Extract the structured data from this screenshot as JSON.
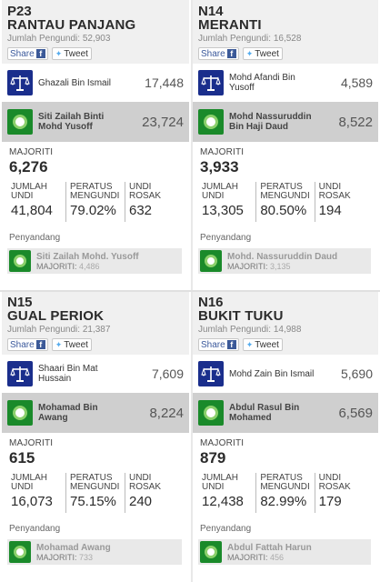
{
  "colors": {
    "bn": "#1a2e8c",
    "pas": "#1a8a2a",
    "winner_bg": "#cfcfcf"
  },
  "share": {
    "share_label": "Share",
    "fb_icon": "f",
    "tweet_label": "Tweet"
  },
  "labels": {
    "voters_prefix": "Jumlah Pengundi:",
    "majority": "MAJORITI",
    "jumlah1": "JUMLAH",
    "jumlah2": "UNDI",
    "peratus1": "PERATUS",
    "peratus2": "MENGUNDI",
    "rosak1": "UNDI",
    "rosak2": "ROSAK",
    "incumbent": "Penyandang",
    "inc_majority_prefix": "MAJORITI:"
  },
  "seats": [
    {
      "code": "P23",
      "name": "RANTAU PANJANG",
      "voters": "52,903",
      "candidates": [
        {
          "party": "bn",
          "name": "Ghazali Bin Ismail",
          "votes": "17,448",
          "winner": false
        },
        {
          "party": "pas",
          "name": "Siti Zailah Binti Mohd Yusoff",
          "votes": "23,724",
          "winner": true
        }
      ],
      "majority": "6,276",
      "total_votes": "41,804",
      "turnout": "79.02%",
      "spoilt": "632",
      "incumbent": {
        "party": "pas",
        "name": "Siti Zailah Mohd. Yusoff",
        "majority": "4,486"
      }
    },
    {
      "code": "N14",
      "name": "MERANTI",
      "voters": "16,528",
      "candidates": [
        {
          "party": "bn",
          "name": "Mohd Afandi Bin Yusoff",
          "votes": "4,589",
          "winner": false
        },
        {
          "party": "pas",
          "name": "Mohd Nassuruddin Bin Haji Daud",
          "votes": "8,522",
          "winner": true
        }
      ],
      "majority": "3,933",
      "total_votes": "13,305",
      "turnout": "80.50%",
      "spoilt": "194",
      "incumbent": {
        "party": "pas",
        "name": "Mohd. Nassuruddin Daud",
        "majority": "3,135"
      }
    },
    {
      "code": "N15",
      "name": "GUAL PERIOK",
      "voters": "21,387",
      "candidates": [
        {
          "party": "bn",
          "name": "Shaari Bin Mat Hussain",
          "votes": "7,609",
          "winner": false
        },
        {
          "party": "pas",
          "name": "Mohamad Bin Awang",
          "votes": "8,224",
          "winner": true
        }
      ],
      "majority": "615",
      "total_votes": "16,073",
      "turnout": "75.15%",
      "spoilt": "240",
      "incumbent": {
        "party": "pas",
        "name": "Mohamad Awang",
        "majority": "733"
      }
    },
    {
      "code": "N16",
      "name": "BUKIT TUKU",
      "voters": "14,988",
      "candidates": [
        {
          "party": "bn",
          "name": "Mohd Zain Bin Ismail",
          "votes": "5,690",
          "winner": false
        },
        {
          "party": "pas",
          "name": "Abdul Rasul Bin Mohamed",
          "votes": "6,569",
          "winner": true
        }
      ],
      "majority": "879",
      "total_votes": "12,438",
      "turnout": "82.99%",
      "spoilt": "179",
      "incumbent": {
        "party": "pas",
        "name": "Abdul Fattah Harun",
        "majority": "456"
      }
    }
  ]
}
